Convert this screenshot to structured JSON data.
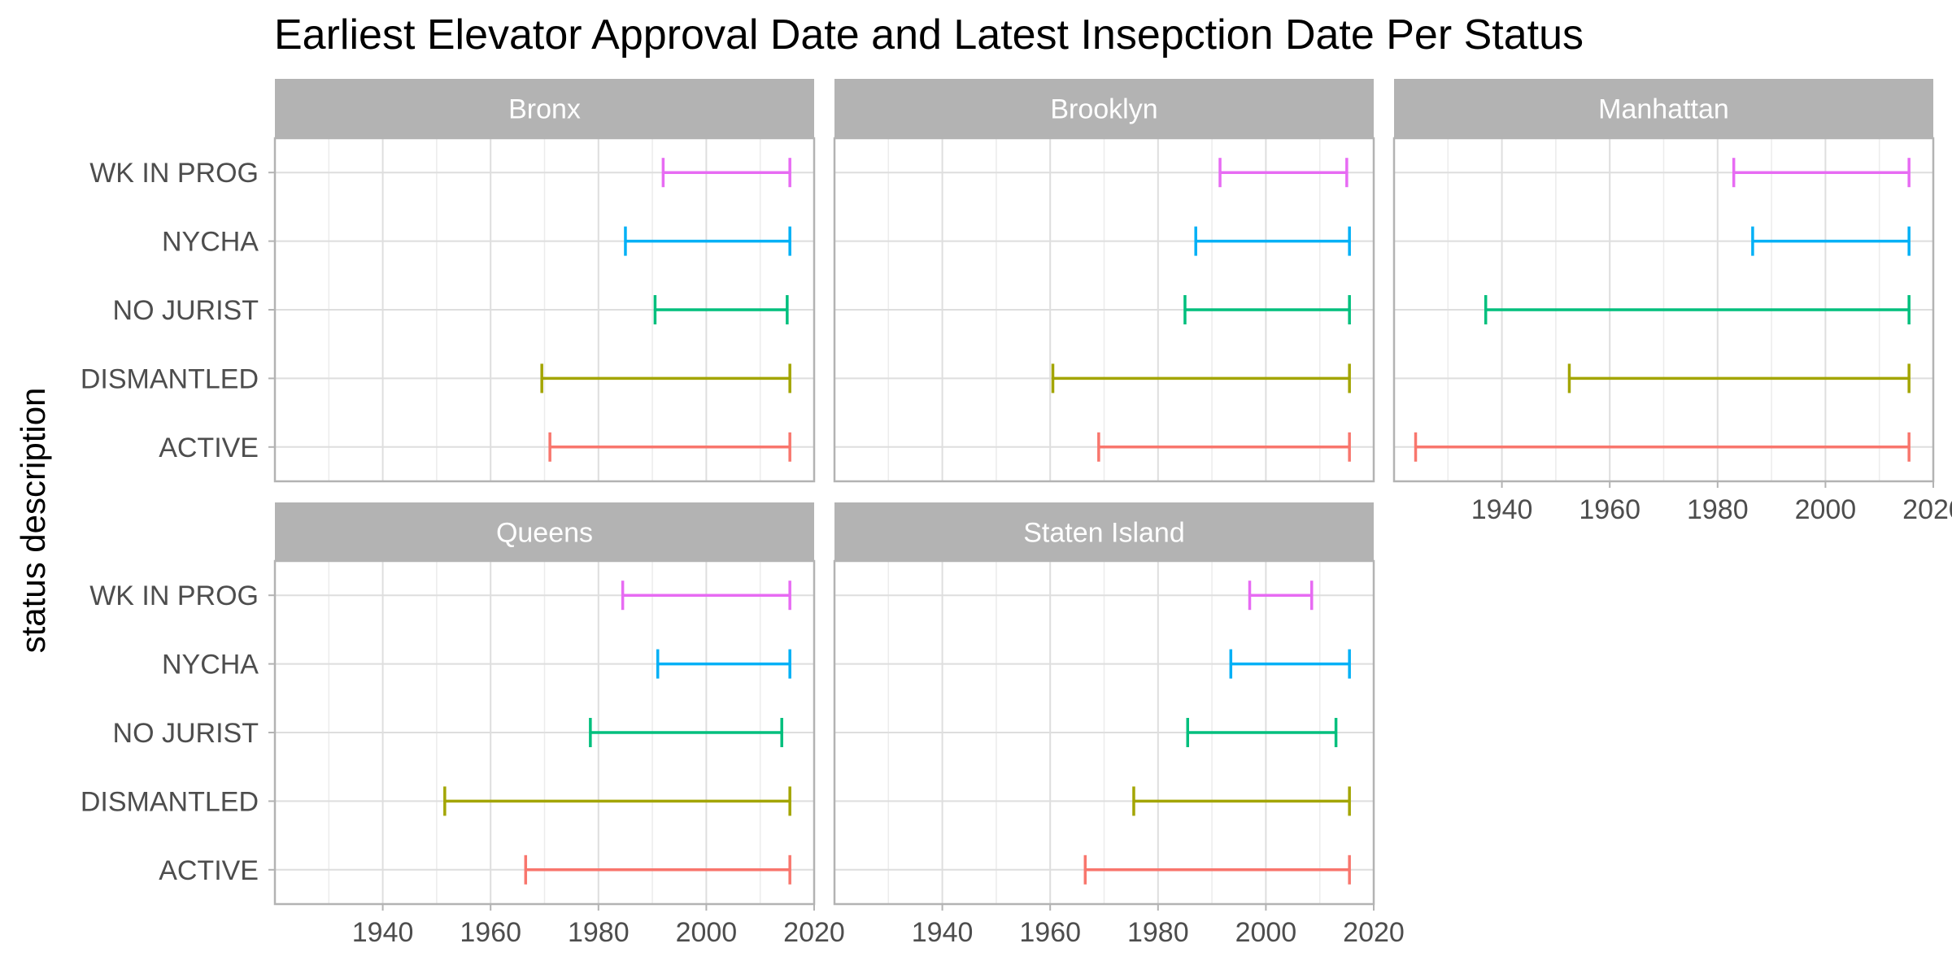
{
  "chart_data": {
    "type": "errorbar",
    "title": "Earliest Elevator Approval Date and Latest Insepction Date Per Status",
    "ylabel": "status description",
    "xlabel": "",
    "xlim": [
      1920,
      2020
    ],
    "x_ticks": [
      1940,
      1960,
      1980,
      2000,
      2020
    ],
    "x_tick_labels": [
      "1940",
      "1960",
      "1980",
      "2000",
      "2020"
    ],
    "categories": [
      "ACTIVE",
      "DISMANTLED",
      "NO JURIST",
      "NYCHA",
      "WK IN PROG"
    ],
    "colors": {
      "ACTIVE": "#F8766D",
      "DISMANTLED": "#A3A500",
      "NO JURIST": "#00BF7D",
      "NYCHA": "#00B0F6",
      "WK IN PROG": "#E76BF3"
    },
    "grid": true,
    "panels": [
      {
        "name": "Bronx",
        "ranges": {
          "ACTIVE": [
            1971,
            2015.5
          ],
          "DISMANTLED": [
            1969.5,
            2015.5
          ],
          "NO JURIST": [
            1990.5,
            2015.0
          ],
          "NYCHA": [
            1985.0,
            2015.5
          ],
          "WK IN PROG": [
            1992.0,
            2015.5
          ]
        }
      },
      {
        "name": "Brooklyn",
        "ranges": {
          "ACTIVE": [
            1969.0,
            2015.5
          ],
          "DISMANTLED": [
            1960.5,
            2015.5
          ],
          "NO JURIST": [
            1985.0,
            2015.5
          ],
          "NYCHA": [
            1987.0,
            2015.5
          ],
          "WK IN PROG": [
            1991.5,
            2015.0
          ]
        }
      },
      {
        "name": "Manhattan",
        "ranges": {
          "ACTIVE": [
            1924.0,
            2015.5
          ],
          "DISMANTLED": [
            1952.5,
            2015.5
          ],
          "NO JURIST": [
            1937.0,
            2015.5
          ],
          "NYCHA": [
            1986.5,
            2015.5
          ],
          "WK IN PROG": [
            1983.0,
            2015.5
          ]
        }
      },
      {
        "name": "Queens",
        "ranges": {
          "ACTIVE": [
            1966.5,
            2015.5
          ],
          "DISMANTLED": [
            1951.5,
            2015.5
          ],
          "NO JURIST": [
            1978.5,
            2014.0
          ],
          "NYCHA": [
            1991.0,
            2015.5
          ],
          "WK IN PROG": [
            1984.5,
            2015.5
          ]
        }
      },
      {
        "name": "Staten Island",
        "ranges": {
          "ACTIVE": [
            1966.5,
            2015.5
          ],
          "DISMANTLED": [
            1975.5,
            2015.5
          ],
          "NO JURIST": [
            1985.5,
            2013.0
          ],
          "NYCHA": [
            1993.5,
            2015.5
          ],
          "WK IN PROG": [
            1997.0,
            2008.5
          ]
        }
      }
    ]
  }
}
